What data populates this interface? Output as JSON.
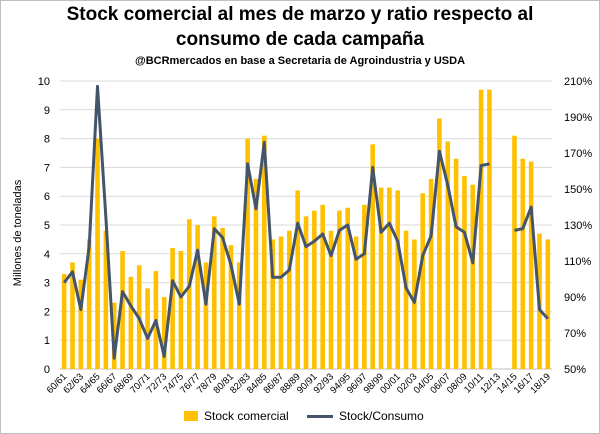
{
  "header": {
    "title_line1": "Stock comercial al mes de marzo y ratio respecto al",
    "title_line2": "consumo de cada campaña",
    "subtitle": "@BCRmercados en base a Secretaria de Agroindustria y USDA"
  },
  "colors": {
    "bar": "#FFC000",
    "line": "#44546A",
    "grid": "#d9d9d9"
  },
  "chart_data": {
    "type": "bar+line",
    "title": "Stock comercial al mes de marzo y ratio respecto al consumo de cada campaña",
    "ylabel": "Millones de toneladas",
    "y2label": "",
    "ylim": [
      0,
      10
    ],
    "y2lim": [
      0.5,
      2.1
    ],
    "yticks": [
      "0",
      "1",
      "2",
      "3",
      "4",
      "5",
      "6",
      "7",
      "8",
      "9",
      "10"
    ],
    "y2ticks": [
      "50%",
      "70%",
      "90%",
      "110%",
      "130%",
      "150%",
      "170%",
      "190%",
      "210%"
    ],
    "grid": true,
    "legend_position": "bottom",
    "categories": [
      "60/61",
      "61/62",
      "62/63",
      "63/64",
      "64/65",
      "65/66",
      "66/67",
      "67/68",
      "68/69",
      "69/70",
      "70/71",
      "71/72",
      "72/73",
      "73/74",
      "74/75",
      "75/76",
      "76/77",
      "77/78",
      "78/79",
      "79/80",
      "80/81",
      "81/82",
      "82/83",
      "83/84",
      "84/85",
      "85/86",
      "86/87",
      "87/88",
      "88/89",
      "89/90",
      "90/91",
      "91/92",
      "92/93",
      "93/94",
      "94/95",
      "95/96",
      "96/97",
      "97/98",
      "98/99",
      "99/00",
      "00/01",
      "01/02",
      "02/03",
      "03/04",
      "04/05",
      "05/06",
      "06/07",
      "07/08",
      "08/09",
      "09/10",
      "10/11",
      "11/12",
      "12/13",
      "13/14",
      "14/15",
      "15/16",
      "16/17",
      "17/18",
      "18/19"
    ],
    "xtick_labels": [
      "60/61",
      "62/63",
      "64/65",
      "66/67",
      "68/69",
      "70/71",
      "72/73",
      "74/75",
      "76/77",
      "78/79",
      "80/81",
      "82/83",
      "84/85",
      "86/87",
      "88/89",
      "90/91",
      "92/93",
      "94/95",
      "96/97",
      "98/99",
      "00/01",
      "02/03",
      "04/05",
      "06/07",
      "08/09",
      "10/11",
      "12/13",
      "14/15",
      "16/17",
      "18/19"
    ],
    "series": [
      {
        "name": "Stock comercial",
        "type": "bar",
        "axis": "left",
        "values": [
          3.3,
          3.7,
          3.1,
          4.5,
          8.0,
          4.8,
          2.3,
          4.1,
          3.2,
          3.6,
          2.8,
          3.4,
          2.5,
          4.2,
          4.1,
          5.2,
          5.0,
          3.7,
          5.3,
          4.9,
          4.3,
          3.7,
          8.0,
          6.6,
          8.1,
          4.5,
          4.6,
          4.8,
          6.2,
          5.3,
          5.5,
          5.7,
          4.8,
          5.5,
          5.6,
          4.6,
          5.7,
          7.8,
          6.3,
          6.3,
          6.2,
          4.8,
          4.5,
          6.1,
          6.6,
          8.7,
          7.9,
          7.3,
          6.7,
          6.4,
          9.7,
          9.7,
          null,
          null,
          8.1,
          7.3,
          7.2,
          4.7,
          4.5
        ]
      },
      {
        "name": "Stock/Consumo",
        "type": "line",
        "axis": "right",
        "values": [
          0.98,
          1.04,
          0.83,
          1.18,
          2.07,
          1.34,
          0.56,
          0.93,
          0.85,
          0.78,
          0.67,
          0.77,
          0.57,
          0.99,
          0.9,
          0.96,
          1.16,
          0.86,
          1.28,
          1.23,
          1.08,
          0.86,
          1.64,
          1.39,
          1.76,
          1.01,
          1.01,
          1.05,
          1.31,
          1.18,
          1.21,
          1.25,
          1.13,
          1.27,
          1.3,
          1.11,
          1.14,
          1.62,
          1.26,
          1.31,
          1.21,
          0.95,
          0.87,
          1.13,
          1.24,
          1.71,
          1.52,
          1.29,
          1.26,
          1.09,
          1.63,
          1.64,
          null,
          null,
          1.27,
          1.28,
          1.4,
          0.83,
          0.78
        ]
      }
    ]
  }
}
